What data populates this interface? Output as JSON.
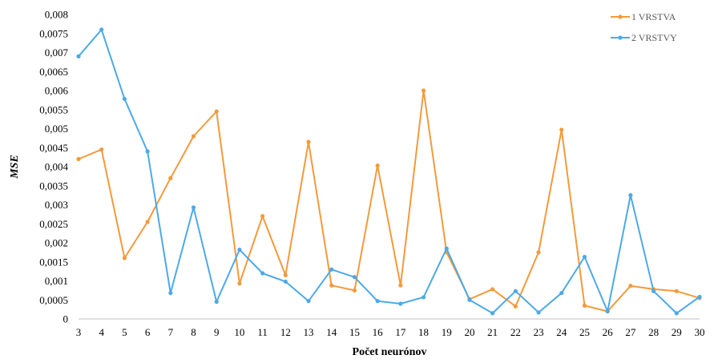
{
  "chart_data": {
    "type": "line",
    "xlabel": "Počet neurónov",
    "ylabel": "MSE",
    "categories": [
      "3",
      "4",
      "5",
      "6",
      "7",
      "8",
      "9",
      "10",
      "11",
      "12",
      "13",
      "14",
      "15",
      "16",
      "17",
      "18",
      "19",
      "20",
      "21",
      "22",
      "23",
      "24",
      "25",
      "26",
      "27",
      "28",
      "29",
      "30"
    ],
    "ylim": [
      0,
      0.008
    ],
    "yticks": [
      "0",
      "0,0005",
      "0,001",
      "0,0015",
      "0,002",
      "0,0025",
      "0,003",
      "0,0035",
      "0,004",
      "0,0045",
      "0,005",
      "0,0055",
      "0,006",
      "0,0065",
      "0,007",
      "0,0075",
      "0,008"
    ],
    "grid": false,
    "legend": "top-right",
    "series": [
      {
        "name": "1 VRSTVA",
        "color": "#F39A3A",
        "values": [
          0.0042,
          0.00445,
          0.0016,
          0.00255,
          0.0037,
          0.0048,
          0.00545,
          0.00093,
          0.0027,
          0.00115,
          0.00465,
          0.00088,
          0.00075,
          0.00403,
          0.00088,
          0.006,
          0.00175,
          0.00052,
          0.00078,
          0.00033,
          0.00175,
          0.00497,
          0.00035,
          0.0002,
          0.00087,
          0.00078,
          0.00073,
          0.00055
        ]
      },
      {
        "name": "2 VRSTVY",
        "color": "#4DA9E8",
        "values": [
          0.0069,
          0.0076,
          0.00578,
          0.0044,
          0.00068,
          0.00293,
          0.00045,
          0.00182,
          0.0012,
          0.00098,
          0.00047,
          0.0013,
          0.0011,
          0.00047,
          0.0004,
          0.00057,
          0.00185,
          0.0005,
          0.00015,
          0.00073,
          0.00017,
          0.00068,
          0.00163,
          0.0002,
          0.00325,
          0.00073,
          0.00015,
          0.00058
        ]
      }
    ]
  }
}
